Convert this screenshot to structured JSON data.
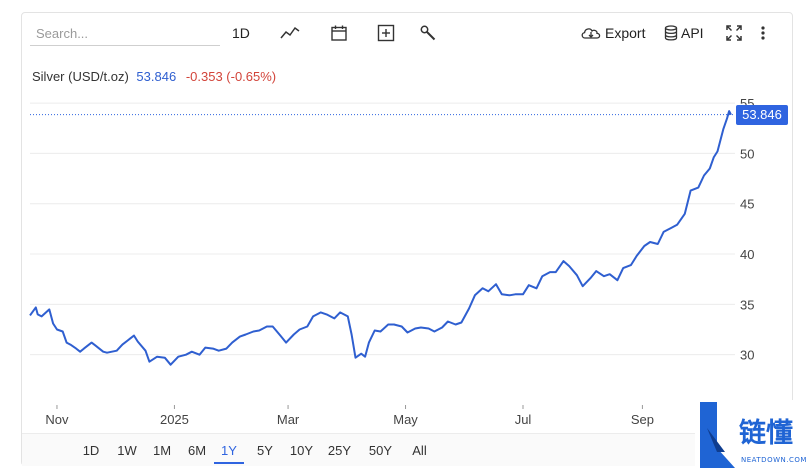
{
  "toolbar": {
    "search_placeholder": "Search...",
    "interval_label": "1D",
    "export_label": "Export",
    "api_label": "API"
  },
  "legend": {
    "name": "Silver (USD/t.oz)",
    "last": "53.846",
    "change": "-0.353 (-0.65%)"
  },
  "price_tag": "53.846",
  "range_buttons": [
    "1D",
    "1W",
    "1M",
    "6M",
    "1Y",
    "5Y",
    "10Y",
    "25Y",
    "50Y",
    "All"
  ],
  "active_range": "1Y",
  "colors": {
    "line": "#2f5fd0",
    "accent": "#2f64e0",
    "negative": "#d2443a",
    "grid": "#ececec"
  },
  "watermark": {
    "text_cn": "链懂",
    "text_en": "NEATDOWN.COM"
  },
  "chart_data": {
    "type": "line",
    "title": "Silver (USD/t.oz)",
    "xlabel": "",
    "ylabel": "",
    "grid": true,
    "ylim": [
      25,
      56
    ],
    "y_ticks": [
      30,
      35,
      40,
      45,
      50,
      55
    ],
    "x_ticks": [
      "Nov",
      "2025",
      "Mar",
      "May",
      "Jul",
      "Sep"
    ],
    "series": [
      {
        "name": "Silver",
        "points": [
          [
            "2024-10-18",
            33.9
          ],
          [
            "2024-10-21",
            34.7
          ],
          [
            "2024-10-22",
            34.0
          ],
          [
            "2024-10-24",
            33.8
          ],
          [
            "2024-10-28",
            34.5
          ],
          [
            "2024-10-30",
            33.1
          ],
          [
            "2024-11-01",
            32.5
          ],
          [
            "2024-11-04",
            32.3
          ],
          [
            "2024-11-06",
            31.2
          ],
          [
            "2024-11-08",
            31.0
          ],
          [
            "2024-11-11",
            30.6
          ],
          [
            "2024-11-13",
            30.3
          ],
          [
            "2024-11-15",
            30.6
          ],
          [
            "2024-11-19",
            31.2
          ],
          [
            "2024-11-21",
            30.9
          ],
          [
            "2024-11-25",
            30.3
          ],
          [
            "2024-11-27",
            30.2
          ],
          [
            "2024-12-02",
            30.4
          ],
          [
            "2024-12-05",
            31.0
          ],
          [
            "2024-12-09",
            31.6
          ],
          [
            "2024-12-11",
            31.9
          ],
          [
            "2024-12-13",
            31.3
          ],
          [
            "2024-12-17",
            30.4
          ],
          [
            "2024-12-19",
            29.3
          ],
          [
            "2024-12-23",
            29.8
          ],
          [
            "2024-12-27",
            29.7
          ],
          [
            "2024-12-30",
            29.0
          ],
          [
            "2025-01-03",
            29.8
          ],
          [
            "2025-01-07",
            30.0
          ],
          [
            "2025-01-10",
            30.3
          ],
          [
            "2025-01-14",
            30.0
          ],
          [
            "2025-01-17",
            30.7
          ],
          [
            "2025-01-21",
            30.6
          ],
          [
            "2025-01-24",
            30.4
          ],
          [
            "2025-01-28",
            30.6
          ],
          [
            "2025-01-31",
            31.2
          ],
          [
            "2025-02-04",
            31.8
          ],
          [
            "2025-02-07",
            32.0
          ],
          [
            "2025-02-11",
            32.3
          ],
          [
            "2025-02-14",
            32.4
          ],
          [
            "2025-02-18",
            32.8
          ],
          [
            "2025-02-21",
            32.8
          ],
          [
            "2025-02-25",
            31.9
          ],
          [
            "2025-02-28",
            31.2
          ],
          [
            "2025-03-04",
            32.0
          ],
          [
            "2025-03-07",
            32.5
          ],
          [
            "2025-03-11",
            32.8
          ],
          [
            "2025-03-14",
            33.8
          ],
          [
            "2025-03-18",
            34.2
          ],
          [
            "2025-03-21",
            34.0
          ],
          [
            "2025-03-25",
            33.6
          ],
          [
            "2025-03-28",
            34.2
          ],
          [
            "2025-04-01",
            33.8
          ],
          [
            "2025-04-03",
            32.0
          ],
          [
            "2025-04-05",
            29.7
          ],
          [
            "2025-04-08",
            30.1
          ],
          [
            "2025-04-10",
            29.8
          ],
          [
            "2025-04-12",
            31.2
          ],
          [
            "2025-04-15",
            32.4
          ],
          [
            "2025-04-18",
            32.3
          ],
          [
            "2025-04-22",
            33.0
          ],
          [
            "2025-04-25",
            33.0
          ],
          [
            "2025-04-29",
            32.8
          ],
          [
            "2025-05-02",
            32.2
          ],
          [
            "2025-05-06",
            32.6
          ],
          [
            "2025-05-09",
            32.7
          ],
          [
            "2025-05-13",
            32.6
          ],
          [
            "2025-05-16",
            32.3
          ],
          [
            "2025-05-20",
            32.7
          ],
          [
            "2025-05-23",
            33.3
          ],
          [
            "2025-05-27",
            33.0
          ],
          [
            "2025-05-30",
            33.2
          ],
          [
            "2025-06-03",
            34.6
          ],
          [
            "2025-06-06",
            35.9
          ],
          [
            "2025-06-10",
            36.6
          ],
          [
            "2025-06-13",
            36.3
          ],
          [
            "2025-06-17",
            37.0
          ],
          [
            "2025-06-20",
            36.0
          ],
          [
            "2025-06-24",
            35.9
          ],
          [
            "2025-06-27",
            36.0
          ],
          [
            "2025-07-01",
            36.0
          ],
          [
            "2025-07-04",
            36.9
          ],
          [
            "2025-07-08",
            36.6
          ],
          [
            "2025-07-11",
            37.8
          ],
          [
            "2025-07-15",
            38.2
          ],
          [
            "2025-07-18",
            38.2
          ],
          [
            "2025-07-22",
            39.3
          ],
          [
            "2025-07-25",
            38.8
          ],
          [
            "2025-07-29",
            37.9
          ],
          [
            "2025-08-01",
            36.8
          ],
          [
            "2025-08-05",
            37.6
          ],
          [
            "2025-08-08",
            38.3
          ],
          [
            "2025-08-12",
            37.8
          ],
          [
            "2025-08-15",
            38.0
          ],
          [
            "2025-08-19",
            37.4
          ],
          [
            "2025-08-22",
            38.6
          ],
          [
            "2025-08-26",
            38.9
          ],
          [
            "2025-08-29",
            39.8
          ],
          [
            "2025-09-02",
            40.8
          ],
          [
            "2025-09-05",
            41.2
          ],
          [
            "2025-09-09",
            41.0
          ],
          [
            "2025-09-12",
            42.2
          ],
          [
            "2025-09-16",
            42.6
          ],
          [
            "2025-09-19",
            42.9
          ],
          [
            "2025-09-23",
            44.0
          ],
          [
            "2025-09-26",
            46.3
          ],
          [
            "2025-09-30",
            46.6
          ],
          [
            "2025-10-03",
            47.8
          ],
          [
            "2025-10-06",
            48.5
          ],
          [
            "2025-10-08",
            49.6
          ],
          [
            "2025-10-10",
            50.2
          ],
          [
            "2025-10-13",
            52.4
          ],
          [
            "2025-10-15",
            53.5
          ],
          [
            "2025-10-16",
            54.2
          ],
          [
            "2025-10-17",
            53.846
          ]
        ]
      }
    ]
  }
}
